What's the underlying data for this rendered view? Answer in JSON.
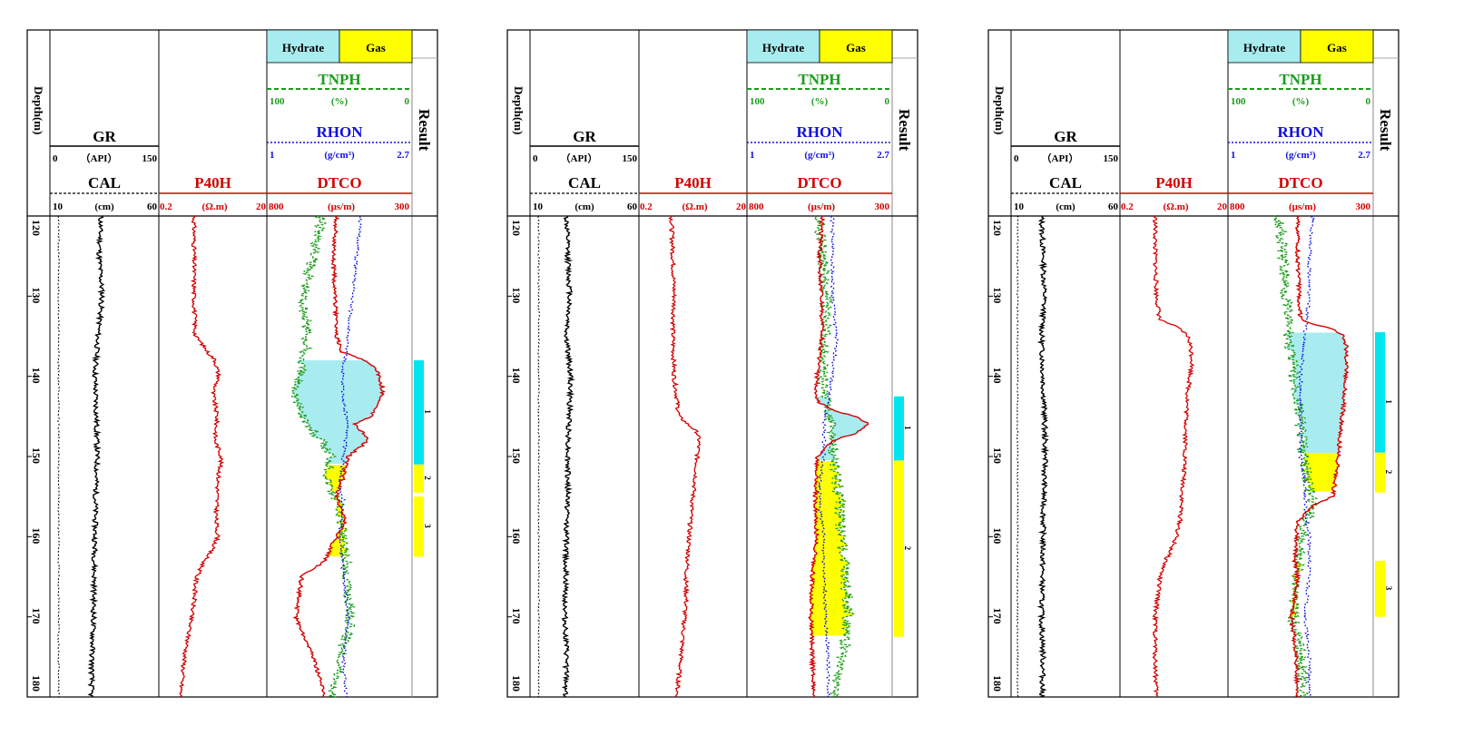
{
  "chart_data": [
    {
      "type": "line",
      "tracks": {
        "depth": {
          "label": "Depth(m)",
          "ticks": [
            120,
            130,
            140,
            150,
            160,
            170,
            180
          ],
          "ylim": [
            120,
            180
          ]
        },
        "gr": {
          "name": "GR",
          "unit": "（API）",
          "min": "0",
          "max": "150",
          "color": "#000000"
        },
        "cal": {
          "name": "CAL",
          "unit": "(cm)",
          "min": "10",
          "max": "60",
          "color": "#000000"
        },
        "p40h": {
          "name": "P40H",
          "unit": "(Ω.m)",
          "min": "0.2",
          "max": "20",
          "color": "#d40000"
        },
        "tnph": {
          "name": "TNPH",
          "unit": "(%)",
          "min": "100",
          "max": "0",
          "color": "#1a9c1a"
        },
        "rhon": {
          "name": "RHON",
          "unit": "(g/cm³)",
          "min": "1",
          "max": "2.7",
          "color": "#1010e0"
        },
        "dtco": {
          "name": "DTCO",
          "unit": "(μs/m)",
          "min": "800",
          "max": "300",
          "color": "#d40000"
        },
        "legend": {
          "hydrate": "Hydrate",
          "gas": "Gas",
          "hydrate_color": "#a8ecf0",
          "gas_color": "#ffff00"
        },
        "result": {
          "label": "Result"
        }
      },
      "series": [
        {
          "name": "GR",
          "depth": [
            120,
            125,
            130,
            135,
            140,
            145,
            150,
            155,
            160,
            165,
            170,
            175,
            180
          ],
          "values": [
            70,
            68,
            72,
            66,
            62,
            64,
            65,
            63,
            62,
            61,
            60,
            58,
            57
          ]
        },
        {
          "name": "CAL",
          "depth": [
            120,
            180
          ],
          "values": [
            14,
            14
          ]
        },
        {
          "name": "P40H",
          "depth": [
            120,
            125,
            130,
            135,
            137,
            138,
            139,
            140,
            142,
            145,
            148,
            150,
            153,
            155,
            158,
            160,
            163,
            165,
            168,
            170,
            175,
            180
          ],
          "values": [
            0.9,
            0.9,
            0.9,
            0.95,
            1.6,
            2.2,
            2.4,
            2.6,
            2.0,
            2.4,
            2.2,
            2.9,
            2.5,
            2.4,
            2.3,
            2.5,
            1.4,
            1.0,
            0.9,
            0.8,
            0.6,
            0.5
          ]
        },
        {
          "name": "TNPH",
          "depth": [
            120,
            125,
            130,
            135,
            140,
            143,
            146,
            150,
            153,
            156,
            160,
            165,
            170,
            175,
            180
          ],
          "values": [
            62,
            68,
            75,
            72,
            78,
            80,
            72,
            55,
            58,
            50,
            48,
            45,
            42,
            48,
            55
          ]
        },
        {
          "name": "RHON",
          "depth": [
            120,
            125,
            130,
            135,
            140,
            143,
            146,
            150,
            153,
            156,
            160,
            165,
            170,
            175,
            180
          ],
          "values": [
            2.1,
            2.05,
            2.0,
            1.95,
            1.88,
            1.9,
            1.95,
            1.9,
            1.85,
            1.9,
            1.85,
            1.9,
            1.95,
            1.9,
            1.92
          ]
        },
        {
          "name": "DTCO",
          "depth": [
            120,
            125,
            130,
            135,
            137,
            138,
            139,
            140,
            142,
            145,
            146,
            147,
            148,
            150,
            153,
            155,
            158,
            160,
            163,
            165,
            170,
            175,
            180
          ],
          "values": [
            560,
            570,
            565,
            560,
            540,
            460,
            430,
            410,
            400,
            440,
            500,
            470,
            450,
            520,
            540,
            560,
            530,
            560,
            600,
            680,
            700,
            640,
            600
          ]
        }
      ],
      "result_intervals": [
        {
          "label": "1",
          "type": "hydrate",
          "top": 138.0,
          "bottom": 151.0
        },
        {
          "label": "2",
          "type": "gas",
          "top": 151.0,
          "bottom": 154.5
        },
        {
          "label": "3",
          "type": "gas",
          "top": 155.0,
          "bottom": 162.5
        }
      ]
    },
    {
      "type": "line",
      "tracks": {
        "depth": {
          "label": "Depth(m)",
          "ticks": [
            120,
            130,
            140,
            150,
            160,
            170,
            180
          ],
          "ylim": [
            120,
            180
          ]
        },
        "gr": {
          "name": "GR",
          "unit": "（API）",
          "min": "0",
          "max": "150",
          "color": "#000000"
        },
        "cal": {
          "name": "CAL",
          "unit": "(cm)",
          "min": "10",
          "max": "60",
          "color": "#000000"
        },
        "p40h": {
          "name": "P40H",
          "unit": "(Ω.m)",
          "min": "0.2",
          "max": "20",
          "color": "#d40000"
        },
        "tnph": {
          "name": "TNPH",
          "unit": "(%)",
          "min": "100",
          "max": "0",
          "color": "#1a9c1a"
        },
        "rhon": {
          "name": "RHON",
          "unit": "(g/cm³)",
          "min": "1",
          "max": "2.7",
          "color": "#1010e0"
        },
        "dtco": {
          "name": "DTCO",
          "unit": "(μs/m)",
          "min": "800",
          "max": "300",
          "color": "#d40000"
        },
        "legend": {
          "hydrate": "Hydrate",
          "gas": "Gas",
          "hydrate_color": "#a8ecf0",
          "gas_color": "#ffff00"
        },
        "result": {
          "label": "Result"
        }
      },
      "series": [
        {
          "name": "GR",
          "depth": [
            120,
            125,
            130,
            135,
            140,
            145,
            150,
            155,
            160,
            165,
            170,
            175,
            180
          ],
          "values": [
            50,
            52,
            55,
            50,
            56,
            54,
            52,
            52,
            50,
            49,
            48,
            50,
            49
          ]
        },
        {
          "name": "CAL",
          "depth": [
            120,
            180
          ],
          "values": [
            14,
            14
          ]
        },
        {
          "name": "P40H",
          "depth": [
            120,
            125,
            130,
            135,
            140,
            145,
            146,
            147,
            148,
            150,
            153,
            155,
            158,
            160,
            163,
            165,
            168,
            170,
            175,
            180
          ],
          "values": [
            0.8,
            0.85,
            0.9,
            0.85,
            0.9,
            1.1,
            1.6,
            2.4,
            2.6,
            2.4,
            2.2,
            2.0,
            1.8,
            1.7,
            1.6,
            1.5,
            1.5,
            1.4,
            1.2,
            1.0
          ]
        },
        {
          "name": "TNPH",
          "depth": [
            120,
            125,
            130,
            135,
            140,
            143,
            146,
            150,
            153,
            156,
            160,
            165,
            170,
            175,
            180
          ],
          "values": [
            50,
            48,
            45,
            46,
            48,
            45,
            42,
            40,
            38,
            36,
            35,
            32,
            30,
            34,
            40
          ]
        },
        {
          "name": "RHON",
          "depth": [
            120,
            125,
            130,
            135,
            140,
            143,
            146,
            150,
            153,
            156,
            160,
            165,
            170,
            175,
            180
          ],
          "values": [
            2.0,
            2.0,
            2.0,
            2.05,
            2.0,
            1.95,
            1.9,
            1.9,
            1.85,
            1.85,
            1.9,
            1.9,
            1.92,
            1.95,
            1.95
          ]
        },
        {
          "name": "DTCO",
          "depth": [
            120,
            125,
            130,
            135,
            140,
            143,
            144,
            145,
            146,
            147,
            148,
            150,
            153,
            155,
            160,
            165,
            170,
            175,
            180
          ],
          "values": [
            540,
            550,
            545,
            540,
            560,
            560,
            520,
            430,
            380,
            420,
            500,
            560,
            560,
            565,
            560,
            575,
            580,
            575,
            570
          ]
        }
      ],
      "result_intervals": [
        {
          "label": "1",
          "type": "hydrate",
          "top": 142.5,
          "bottom": 150.5
        },
        {
          "label": "2",
          "type": "gas",
          "top": 150.5,
          "bottom": 172.5
        }
      ]
    },
    {
      "type": "line",
      "tracks": {
        "depth": {
          "label": "Depth(m)",
          "ticks": [
            120,
            130,
            140,
            150,
            160,
            170,
            180
          ],
          "ylim": [
            120,
            180
          ]
        },
        "gr": {
          "name": "GR",
          "unit": "（API）",
          "min": "0",
          "max": "150",
          "color": "#000000"
        },
        "cal": {
          "name": "CAL",
          "unit": "(cm)",
          "min": "10",
          "max": "60",
          "color": "#000000"
        },
        "p40h": {
          "name": "P40H",
          "unit": "(Ω.m)",
          "min": "0.2",
          "max": "20",
          "color": "#d40000"
        },
        "tnph": {
          "name": "TNPH",
          "unit": "(%)",
          "min": "100",
          "max": "0",
          "color": "#1a9c1a"
        },
        "rhon": {
          "name": "RHON",
          "unit": "(g/cm³)",
          "min": "1",
          "max": "2.7",
          "color": "#1010e0"
        },
        "dtco": {
          "name": "DTCO",
          "unit": "(μs/m)",
          "min": "800",
          "max": "300",
          "color": "#d40000"
        },
        "legend": {
          "hydrate": "Hydrate",
          "gas": "Gas",
          "hydrate_color": "#a8ecf0",
          "gas_color": "#ffff00"
        },
        "result": {
          "label": "Result"
        }
      },
      "series": [
        {
          "name": "GR",
          "depth": [
            120,
            125,
            130,
            135,
            140,
            145,
            150,
            155,
            160,
            165,
            170,
            175,
            180
          ],
          "values": [
            42,
            44,
            46,
            42,
            44,
            46,
            47,
            45,
            44,
            43,
            42,
            44,
            43
          ]
        },
        {
          "name": "CAL",
          "depth": [
            120,
            180
          ],
          "values": [
            13,
            13
          ]
        },
        {
          "name": "P40H",
          "depth": [
            120,
            125,
            130,
            133,
            134,
            135,
            136,
            138,
            140,
            142,
            145,
            150,
            153,
            155,
            158,
            160,
            163,
            165,
            170,
            175,
            180
          ],
          "values": [
            0.9,
            0.9,
            0.95,
            1.1,
            2.4,
            3.6,
            4.0,
            4.4,
            4.0,
            3.6,
            3.4,
            3.2,
            3.0,
            2.8,
            2.6,
            2.2,
            1.4,
            1.1,
            0.9,
            0.9,
            0.95
          ]
        },
        {
          "name": "TNPH",
          "depth": [
            120,
            125,
            130,
            135,
            140,
            143,
            146,
            150,
            153,
            156,
            160,
            165,
            170,
            175,
            180
          ],
          "values": [
            65,
            62,
            60,
            58,
            55,
            52,
            50,
            48,
            45,
            42,
            50,
            52,
            55,
            50,
            48
          ]
        },
        {
          "name": "RHON",
          "depth": [
            120,
            125,
            130,
            135,
            140,
            143,
            146,
            150,
            153,
            156,
            160,
            165,
            170,
            175,
            180
          ],
          "values": [
            2.0,
            1.95,
            1.95,
            1.9,
            1.85,
            1.85,
            1.85,
            1.85,
            1.9,
            1.9,
            1.95,
            1.95,
            1.9,
            1.95,
            1.95
          ]
        },
        {
          "name": "DTCO",
          "depth": [
            120,
            125,
            130,
            133,
            134,
            135,
            137,
            140,
            143,
            146,
            150,
            153,
            155,
            156,
            158,
            160,
            163,
            165,
            170,
            175,
            180
          ],
          "values": [
            560,
            560,
            555,
            550,
            450,
            400,
            390,
            395,
            400,
            410,
            420,
            430,
            440,
            500,
            560,
            565,
            570,
            560,
            580,
            565,
            560
          ]
        }
      ],
      "result_intervals": [
        {
          "label": "1",
          "type": "hydrate",
          "top": 134.5,
          "bottom": 152.0
        },
        {
          "label": "2",
          "type": "gas",
          "top": 149.5,
          "bottom": 154.5
        },
        {
          "label": "3",
          "type": "gas",
          "top": 163.0,
          "bottom": 170.0
        }
      ]
    }
  ]
}
